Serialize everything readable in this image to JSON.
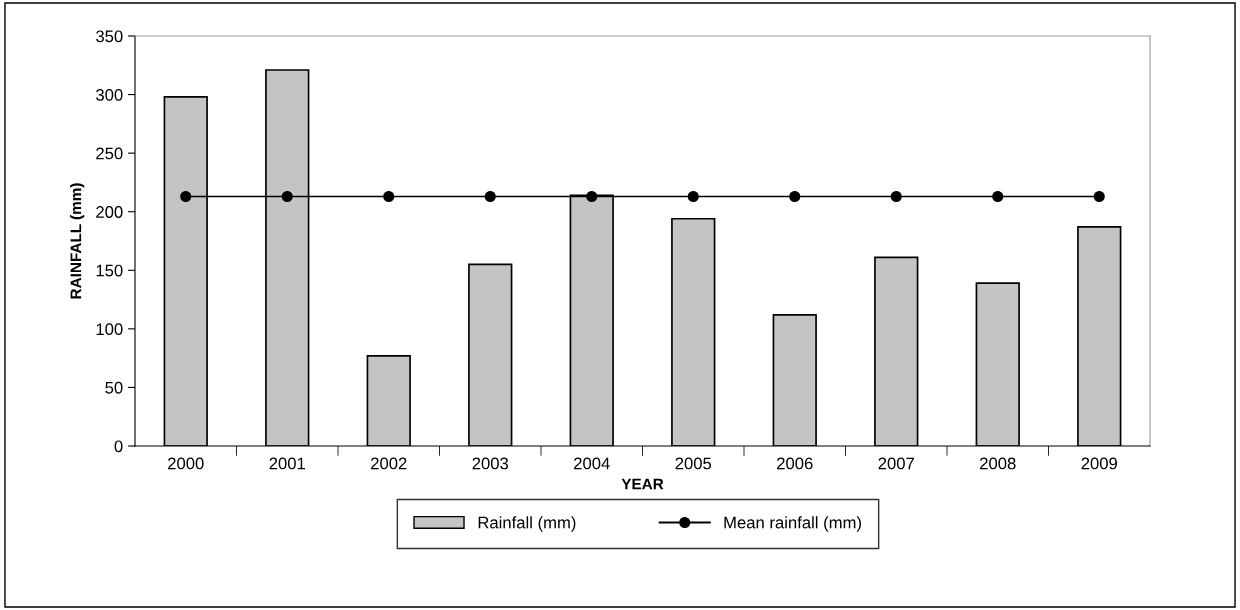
{
  "chart_data": {
    "type": "bar",
    "xlabel": "YEAR",
    "ylabel": "RAINFALL (mm)",
    "categories": [
      "2000",
      "2001",
      "2002",
      "2003",
      "2004",
      "2005",
      "2006",
      "2007",
      "2008",
      "2009"
    ],
    "series": [
      {
        "name": "Rainfall (mm)",
        "color": "#c4c4c4",
        "values": [
          298,
          321,
          77,
          155,
          214,
          194,
          112,
          161,
          139,
          187
        ]
      },
      {
        "name": "Mean rainfall (mm)",
        "type": "line",
        "color": "#000000",
        "marker": "circle",
        "values": [
          213,
          213,
          213,
          213,
          213,
          213,
          213,
          213,
          213,
          213
        ]
      }
    ],
    "ylim": [
      0,
      350
    ],
    "yticks": [
      0,
      50,
      100,
      150,
      200,
      250,
      300,
      350
    ],
    "grid": false,
    "legend": "bottom"
  }
}
